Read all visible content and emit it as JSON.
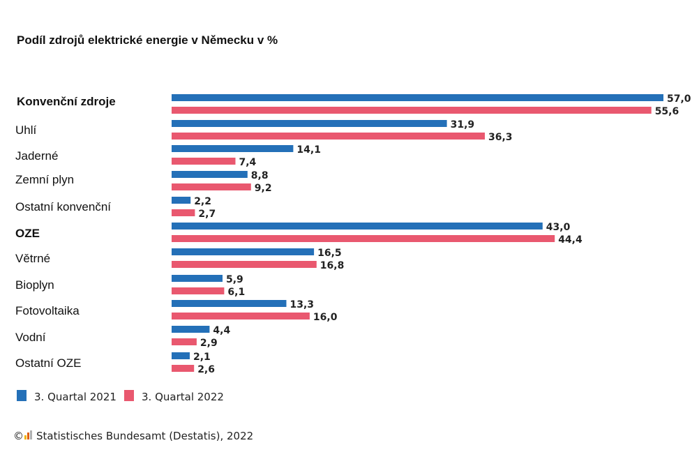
{
  "chart_data": {
    "type": "bar",
    "orientation": "horizontal",
    "title": "Podíl zdrojů elektrické energie v Německu v %",
    "categories": [
      "Konvenční zdroje",
      "Uhlí",
      "Jaderné",
      "Zemní plyn",
      "Ostatní konvenční",
      "OZE",
      "Větrné",
      "Bioplyn",
      "Fotovoltaika",
      "Vodní",
      "Ostatní OZE"
    ],
    "category_bold": [
      true,
      false,
      false,
      false,
      false,
      true,
      false,
      false,
      false,
      false,
      false
    ],
    "series": [
      {
        "name": "3. Quartal 2021",
        "color": "#2470b8",
        "values": [
          57.0,
          31.9,
          14.1,
          8.8,
          2.2,
          43.0,
          16.5,
          5.9,
          13.3,
          4.4,
          2.1
        ],
        "labels": [
          "57,0",
          "31,9",
          "14,1",
          "8,8",
          "2,2",
          "43,0",
          "16,5",
          "5,9",
          "13,3",
          "4,4",
          "2,1"
        ]
      },
      {
        "name": "3. Quartal 2022",
        "color": "#e9586f",
        "values": [
          55.6,
          36.3,
          7.4,
          9.2,
          2.7,
          44.4,
          16.8,
          6.1,
          16.0,
          2.9,
          2.6
        ],
        "labels": [
          "55,6",
          "36,3",
          "7,4",
          "9,2",
          "2,7",
          "44,4",
          "16,8",
          "6,1",
          "16,0",
          "2,9",
          "2,6"
        ]
      }
    ],
    "xlim": [
      0,
      57
    ],
    "grid": false,
    "legend_position": "bottom-left"
  },
  "source": {
    "icon": "destatis-logo-icon",
    "text": "Statistisches Bundesamt (Destatis), 2022"
  }
}
